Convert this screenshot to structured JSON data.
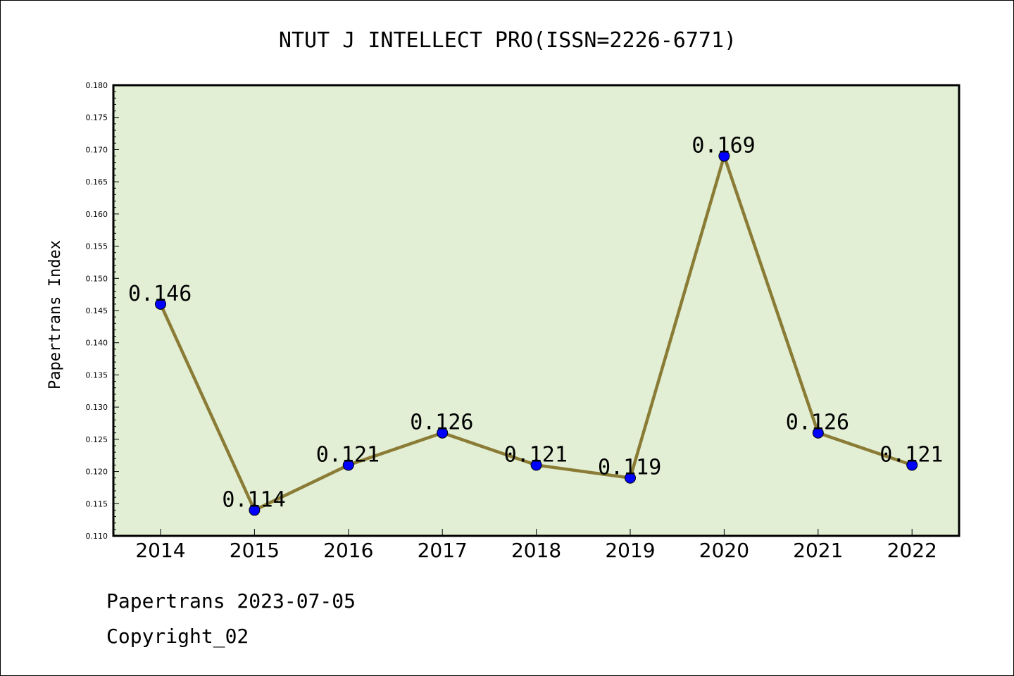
{
  "chart_data": {
    "type": "line",
    "title": "NTUT J INTELLECT PRO(ISSN=2226-6771)",
    "ylabel": "Papertrans Index",
    "xlabel": "",
    "categories": [
      "2014",
      "2015",
      "2016",
      "2017",
      "2018",
      "2019",
      "2020",
      "2021",
      "2022"
    ],
    "values": [
      0.146,
      0.114,
      0.121,
      0.126,
      0.121,
      0.119,
      0.169,
      0.126,
      0.121
    ],
    "data_labels": [
      "0.146",
      "0.114",
      "0.121",
      "0.126",
      "0.121",
      "0.119",
      "0.169",
      "0.126",
      "0.121"
    ],
    "ylim": [
      0.11,
      0.18
    ],
    "yticks": [
      "0.110",
      "0.115",
      "0.120",
      "0.125",
      "0.130",
      "0.135",
      "0.140",
      "0.145",
      "0.150",
      "0.155",
      "0.160",
      "0.165",
      "0.170",
      "0.175",
      "0.180"
    ],
    "grid": false,
    "colors": {
      "plot_background": "#e2efd5",
      "line": "#8a7b35",
      "marker": "#0000ff",
      "axis": "#000000"
    }
  },
  "footer": {
    "date_line": "Papertrans 2023-07-05",
    "copyright_line": "Copyright_02"
  }
}
